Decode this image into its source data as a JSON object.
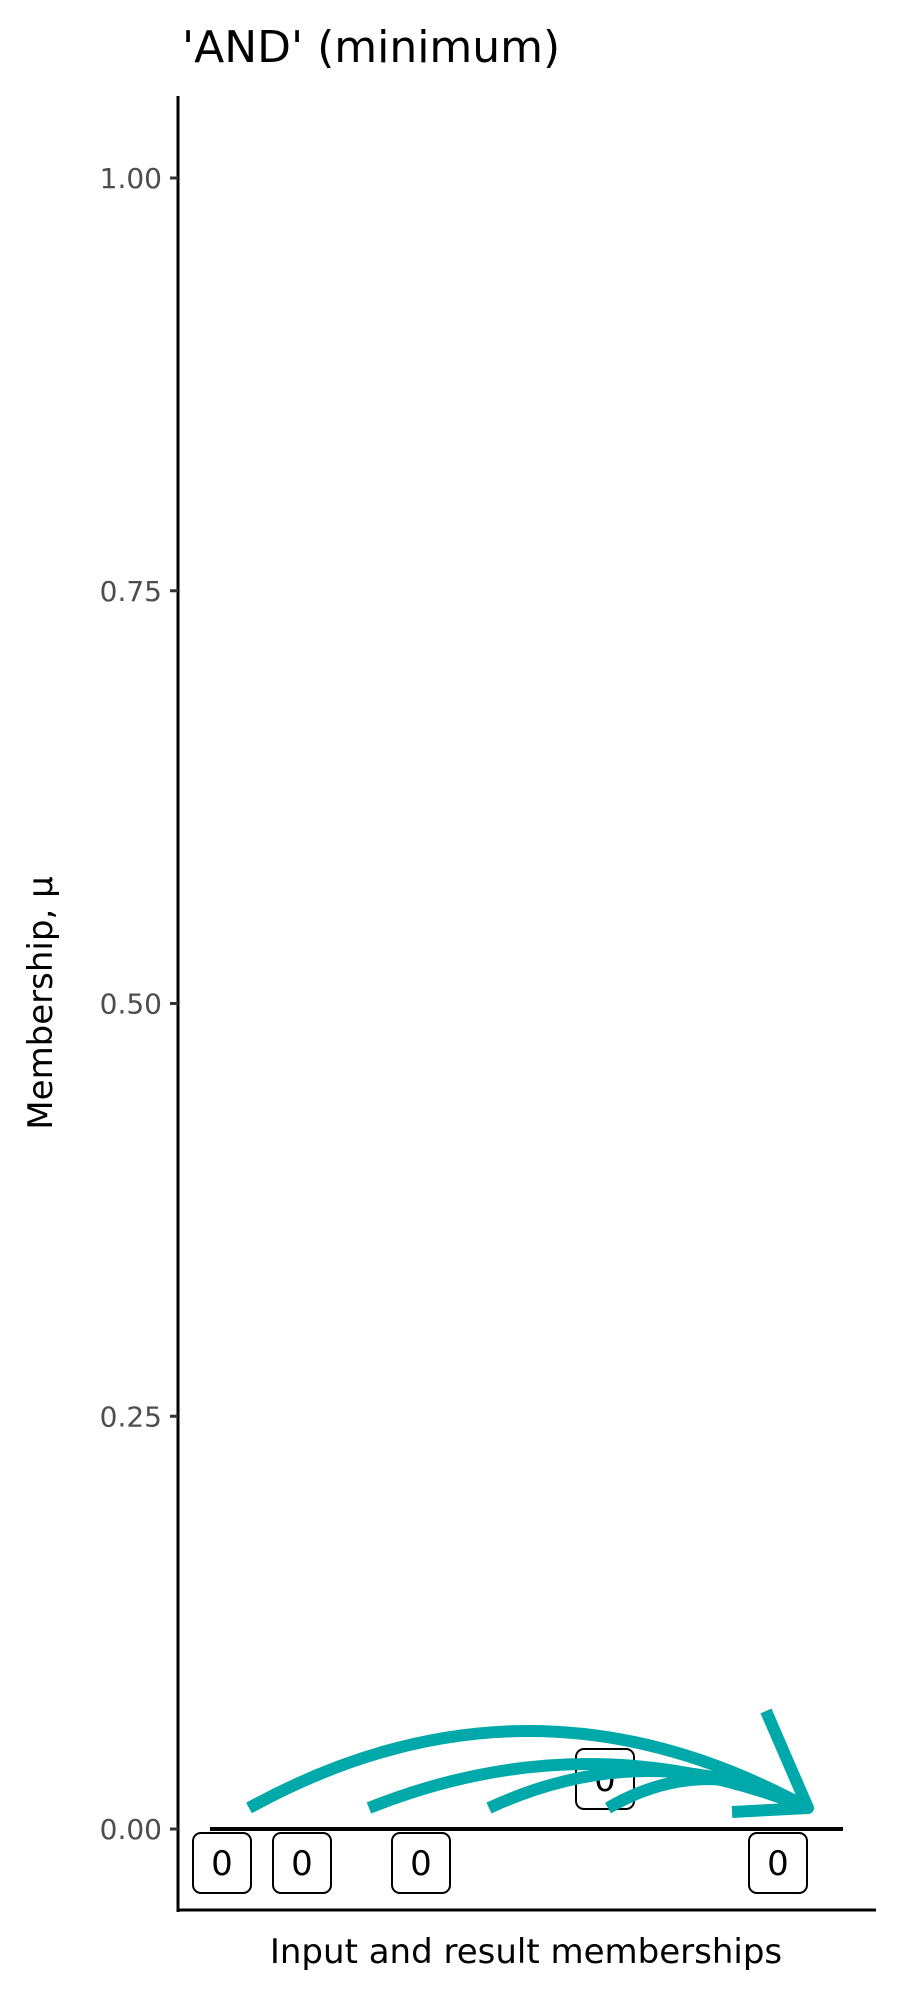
{
  "chart_data": {
    "type": "annotated-points",
    "title": "'AND' (minimum)",
    "xlabel": "Input and result memberships",
    "ylabel": "Membership, μ",
    "ylim": [
      -0.1,
      1.1
    ],
    "yticks": [
      0,
      0.25,
      0.5,
      0.75,
      1
    ],
    "ytick_labels": [
      "0.00",
      "0.25",
      "0.50",
      "0.75",
      "1.00"
    ],
    "grid": false,
    "inputs": [
      {
        "label": "0",
        "value": 0
      },
      {
        "label": "0",
        "value": 0
      },
      {
        "label": "0",
        "value": 0
      },
      {
        "label": "0",
        "value": 0
      }
    ],
    "extra_label": {
      "label": "0",
      "value": 0
    },
    "result": {
      "label": "0",
      "value": 0
    },
    "arrow_color": "#00A9A9"
  }
}
